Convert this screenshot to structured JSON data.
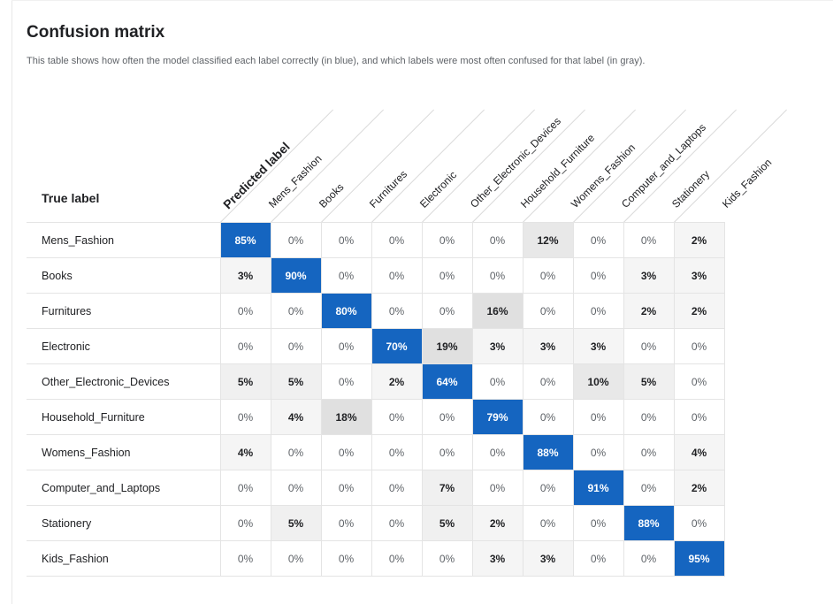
{
  "header": {
    "title": "Confusion matrix",
    "subtitle": "This table shows how often the model classified each label correctly (in blue), and which labels were most often confused for that label (in gray)."
  },
  "axes": {
    "true_label": "True label",
    "predicted_label": "Predicted label"
  },
  "colors": {
    "diagonal": "#1565c0",
    "diagonal_text": "#ffffff",
    "off_diagonal_zero": "#ffffff",
    "zero_text": "#5f6368"
  },
  "chart_data": {
    "type": "heatmap",
    "title": "Confusion matrix",
    "xlabel": "Predicted label",
    "ylabel": "True label",
    "labels": [
      "Mens_Fashion",
      "Books",
      "Furnitures",
      "Electronic",
      "Other_Electronic_Devices",
      "Household_Furniture",
      "Womens_Fashion",
      "Computer_and_Laptops",
      "Stationery",
      "Kids_Fashion"
    ],
    "values": [
      [
        85,
        0,
        0,
        0,
        0,
        0,
        12,
        0,
        0,
        2
      ],
      [
        3,
        90,
        0,
        0,
        0,
        0,
        0,
        0,
        3,
        3
      ],
      [
        0,
        0,
        80,
        0,
        0,
        16,
        0,
        0,
        2,
        2
      ],
      [
        0,
        0,
        0,
        70,
        19,
        3,
        3,
        3,
        0,
        0
      ],
      [
        5,
        5,
        0,
        2,
        64,
        0,
        0,
        10,
        5,
        0
      ],
      [
        0,
        4,
        18,
        0,
        0,
        79,
        0,
        0,
        0,
        0
      ],
      [
        4,
        0,
        0,
        0,
        0,
        0,
        88,
        0,
        0,
        4
      ],
      [
        0,
        0,
        0,
        0,
        7,
        0,
        0,
        91,
        0,
        2
      ],
      [
        0,
        5,
        0,
        0,
        5,
        2,
        0,
        0,
        88,
        0
      ],
      [
        0,
        0,
        0,
        0,
        0,
        3,
        3,
        0,
        0,
        95
      ]
    ],
    "unit": "%"
  }
}
